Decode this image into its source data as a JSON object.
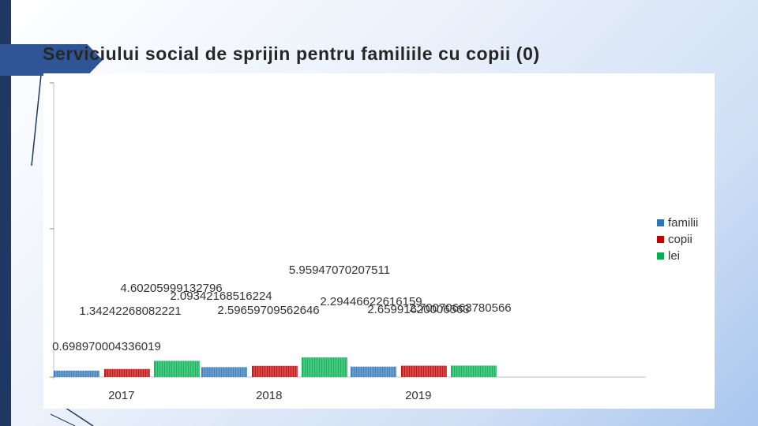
{
  "slide": {
    "title": "Serviciului social de sprijin pentru familiile cu copii (0)"
  },
  "chart_data": {
    "type": "bar",
    "categories": [
      "2017",
      "2018",
      "2019"
    ],
    "series": [
      {
        "name": "familii",
        "color": "#2e75b6",
        "values": [
          0.698970004336019,
          2.09342168516224,
          2.29446622616159
        ],
        "labels": [
          "0.698970004336019",
          "2.09342168516224",
          "2.29446622616159"
        ]
      },
      {
        "name": "copii",
        "color": "#c00000",
        "values": [
          1.34242268082221,
          2.59659709562646,
          2.65991620006563
        ],
        "labels": [
          "1.34242268082221",
          "2.59659709562646",
          "2.65991620006563"
        ]
      },
      {
        "name": "lei",
        "color": "#00b050",
        "values": [
          4.60205999132796,
          5.95947070207511,
          2.70070663780566
        ],
        "labels": [
          "4.60205999132796",
          "5.95947070207511",
          "2.70070663780566"
        ]
      }
    ],
    "legend_position": "right",
    "grid": false
  }
}
